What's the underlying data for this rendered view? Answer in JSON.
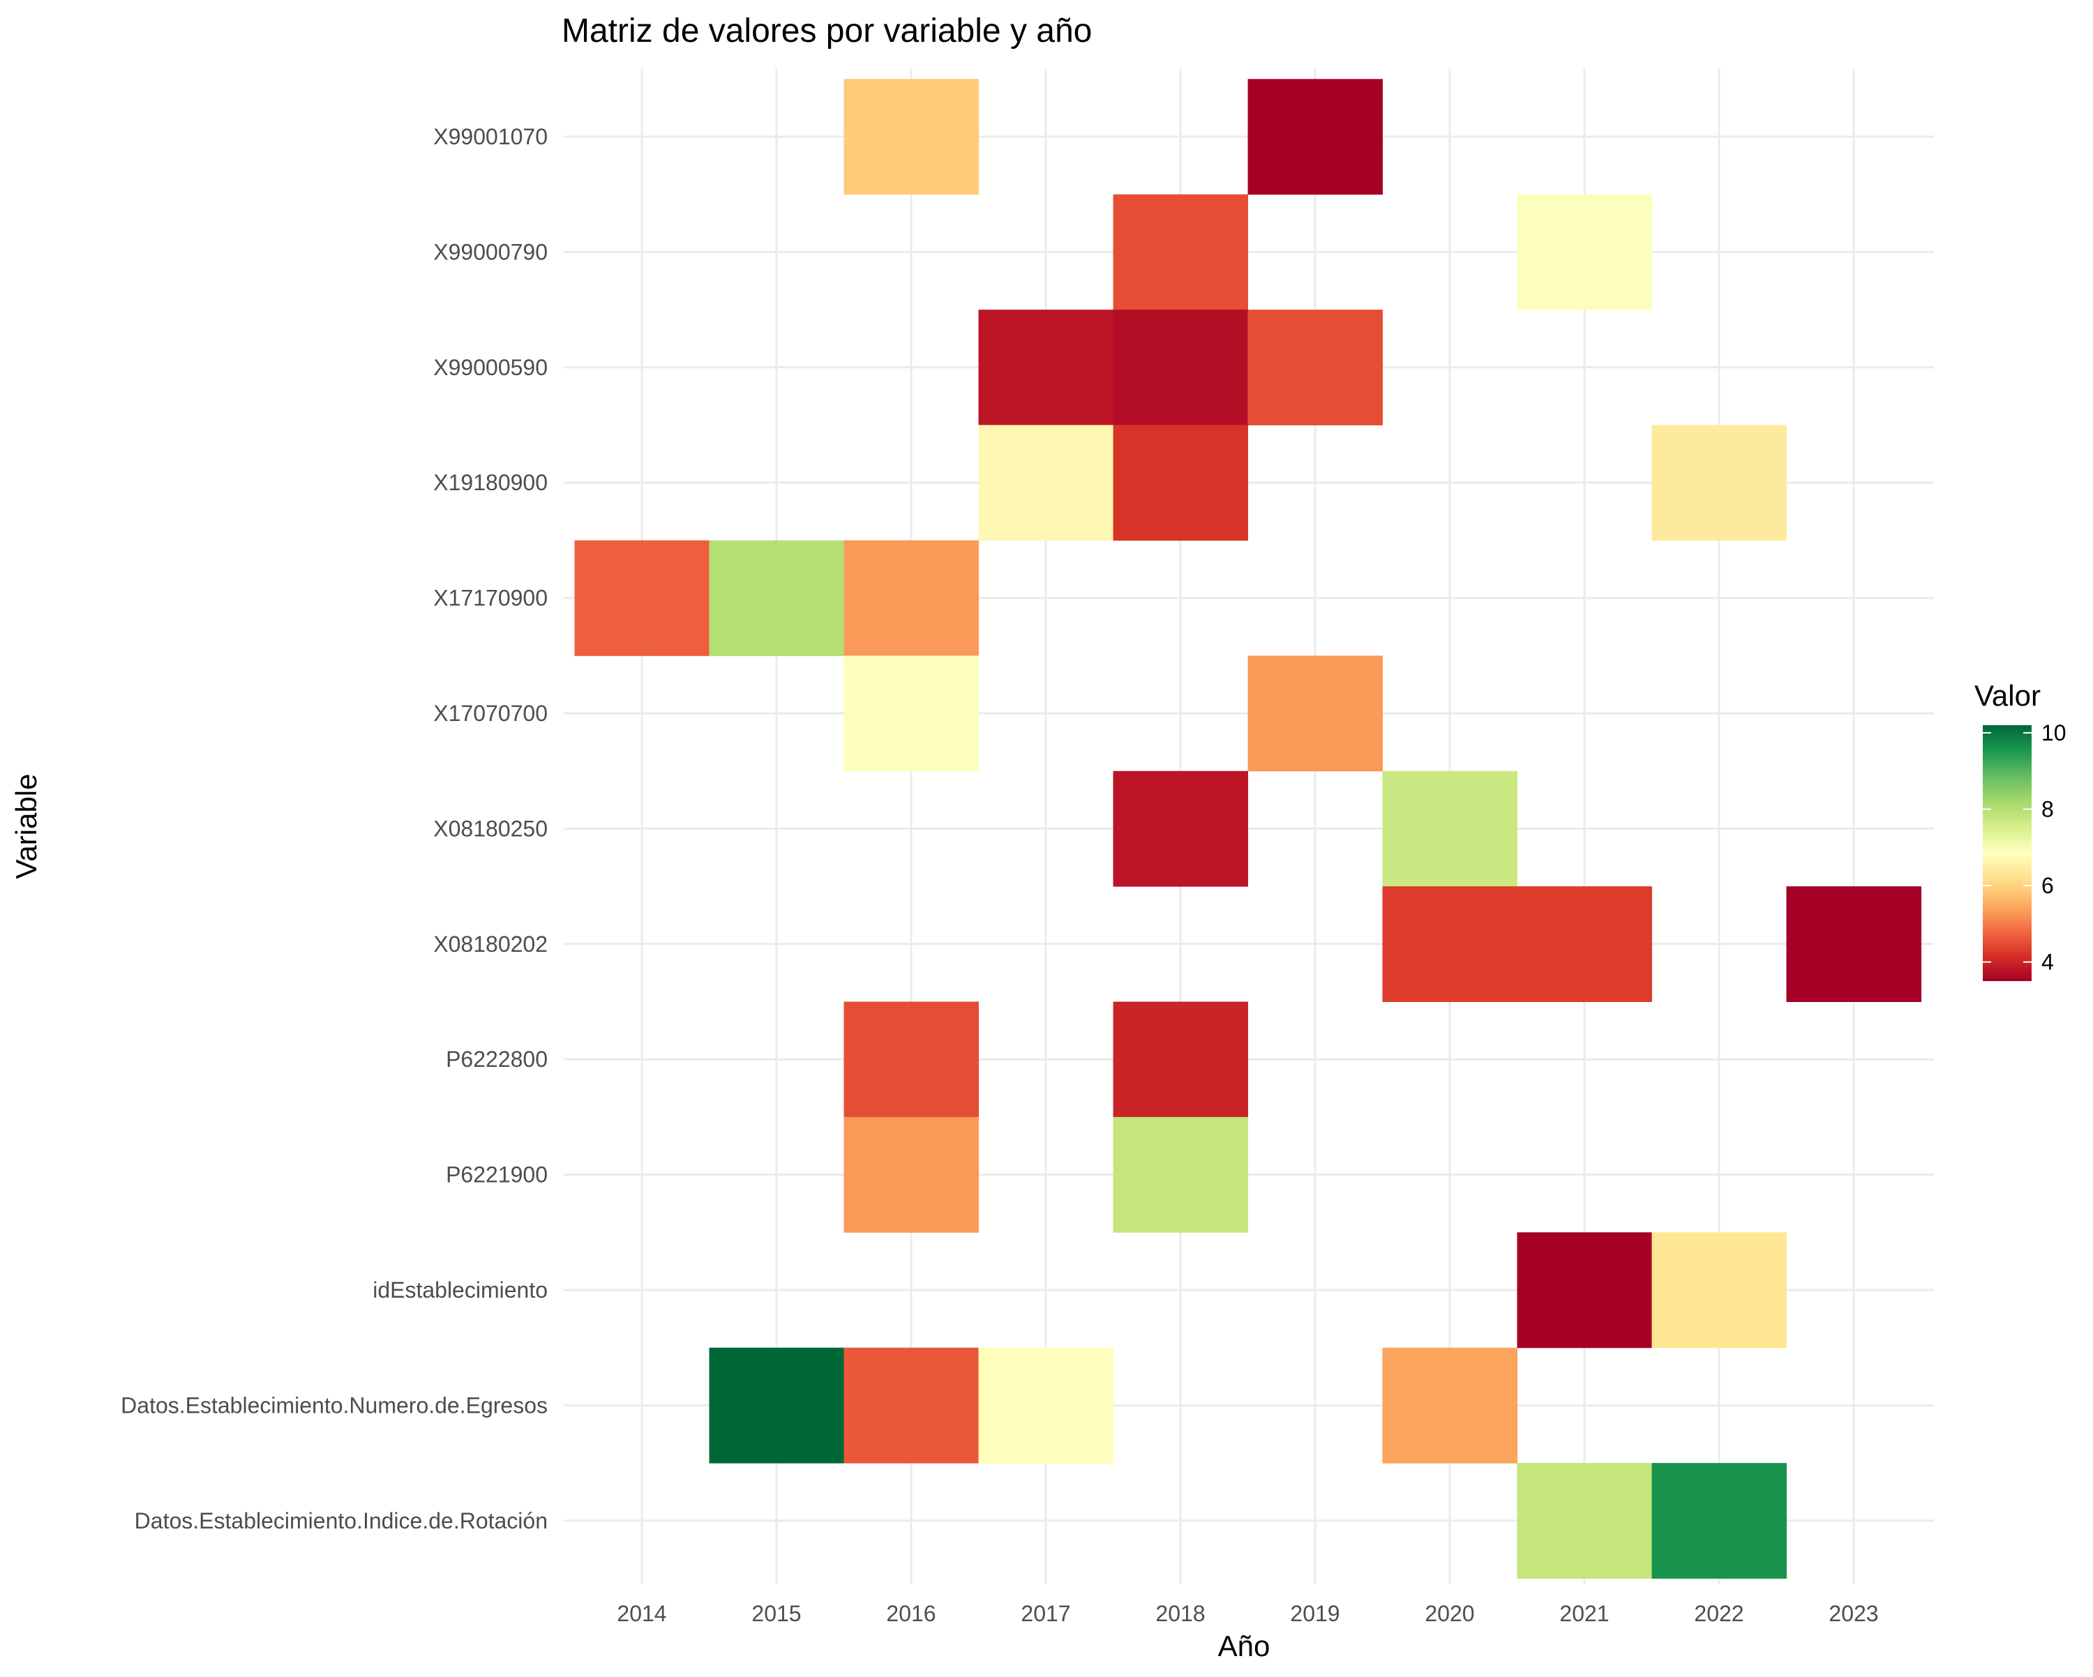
{
  "chart_data": {
    "type": "heatmap",
    "title": "Matriz de valores por variable y año",
    "xlabel": "Año",
    "ylabel": "Variable",
    "x_categories": [
      "2014",
      "2015",
      "2016",
      "2017",
      "2018",
      "2019",
      "2020",
      "2021",
      "2022",
      "2023"
    ],
    "y_categories": [
      "X99001070",
      "X99000790",
      "X99000590",
      "X19180900",
      "X17170900",
      "X17070700",
      "X08180250",
      "X08180202",
      "P6222800",
      "P6221900",
      "idEstablecimiento",
      "Datos.Establecimiento.Numero.de.Egresos",
      "Datos.Establecimiento.Indice.de.Rotación"
    ],
    "cells": [
      {
        "x": "2016",
        "y": "X99001070",
        "value": 5.9
      },
      {
        "x": "2019",
        "y": "X99001070",
        "value": 3.5
      },
      {
        "x": "2018",
        "y": "X99000790",
        "value": 4.5
      },
      {
        "x": "2021",
        "y": "X99000790",
        "value": 6.9
      },
      {
        "x": "2017",
        "y": "X99000590",
        "value": 3.8
      },
      {
        "x": "2018",
        "y": "X99000590",
        "value": 3.7
      },
      {
        "x": "2019",
        "y": "X99000590",
        "value": 4.5
      },
      {
        "x": "2017",
        "y": "X19180900",
        "value": 6.7
      },
      {
        "x": "2018",
        "y": "X19180900",
        "value": 4.2
      },
      {
        "x": "2022",
        "y": "X19180900",
        "value": 6.4
      },
      {
        "x": "2014",
        "y": "X17170900",
        "value": 4.7
      },
      {
        "x": "2015",
        "y": "X17170900",
        "value": 8.0
      },
      {
        "x": "2016",
        "y": "X17170900",
        "value": 5.3
      },
      {
        "x": "2016",
        "y": "X17070700",
        "value": 6.9
      },
      {
        "x": "2019",
        "y": "X17070700",
        "value": 5.3
      },
      {
        "x": "2018",
        "y": "X08180250",
        "value": 3.8
      },
      {
        "x": "2020",
        "y": "X08180250",
        "value": 7.7
      },
      {
        "x": "2020",
        "y": "X08180202",
        "value": 4.3
      },
      {
        "x": "2021",
        "y": "X08180202",
        "value": 4.3
      },
      {
        "x": "2023",
        "y": "X08180202",
        "value": 3.5
      },
      {
        "x": "2016",
        "y": "P6222800",
        "value": 4.5
      },
      {
        "x": "2018",
        "y": "P6222800",
        "value": 4.0
      },
      {
        "x": "2016",
        "y": "P6221900",
        "value": 5.3
      },
      {
        "x": "2018",
        "y": "P6221900",
        "value": 7.8
      },
      {
        "x": "2021",
        "y": "idEstablecimiento",
        "value": 3.5
      },
      {
        "x": "2022",
        "y": "idEstablecimiento",
        "value": 6.3
      },
      {
        "x": "2015",
        "y": "Datos.Establecimiento.Numero.de.Egresos",
        "value": 10.2
      },
      {
        "x": "2016",
        "y": "Datos.Establecimiento.Numero.de.Egresos",
        "value": 4.6
      },
      {
        "x": "2017",
        "y": "Datos.Establecimiento.Numero.de.Egresos",
        "value": 6.8
      },
      {
        "x": "2020",
        "y": "Datos.Establecimiento.Numero.de.Egresos",
        "value": 5.4
      },
      {
        "x": "2021",
        "y": "Datos.Establecimiento.Indice.de.Rotación",
        "value": 7.8
      },
      {
        "x": "2022",
        "y": "Datos.Establecimiento.Indice.de.Rotación",
        "value": 9.6
      }
    ],
    "legend": {
      "title": "Valor",
      "ticks": [
        4,
        6,
        8,
        10
      ],
      "range": [
        3.5,
        10.2
      ],
      "placement": "right",
      "palette": [
        "#a50026",
        "#d73027",
        "#f46d43",
        "#fdae61",
        "#fee08b",
        "#ffffbf",
        "#d9ef8b",
        "#a6d96a",
        "#66bd63",
        "#1a9850",
        "#006837"
      ]
    },
    "grid": true
  }
}
